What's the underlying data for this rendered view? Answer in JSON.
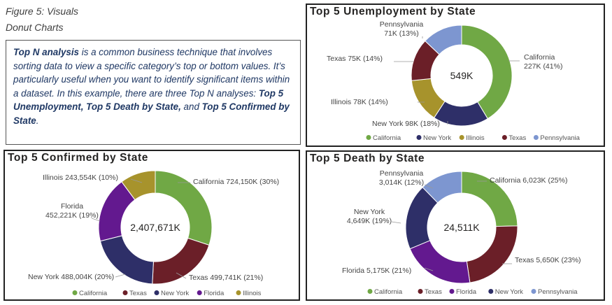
{
  "caption_line1": "Figure 5: Visuals",
  "caption_line2": "Donut Charts",
  "intro": {
    "t1": "Top N analysis",
    "t2": " is a common business technique that involves sorting data to view a specific category’s top or bottom values. It’s particularly useful when you want to identify significant items within a dataset.  In this example, there are three Top N analyses: ",
    "t3": "Top 5 Unemployment, Top 5 Death by State,",
    "t4": " and ",
    "t5": "Top 5 Confirmed by State",
    "t6": "."
  },
  "chart_data": [
    {
      "type": "pie",
      "title": "Top 5 Unemployment by State",
      "center_label": "549K",
      "slices": [
        {
          "name": "California",
          "value": 227,
          "label_lines": [
            "California",
            "227K (41%)"
          ],
          "color": "#70a845"
        },
        {
          "name": "New York",
          "value": 98,
          "label_lines": [
            "New York 98K (18%)"
          ],
          "color": "#2e2f68"
        },
        {
          "name": "Illinois",
          "value": 78,
          "label_lines": [
            "Illinois 78K (14%)"
          ],
          "color": "#a7932c"
        },
        {
          "name": "Texas",
          "value": 75,
          "label_lines": [
            "Texas 75K (14%)"
          ],
          "color": "#6b1f28"
        },
        {
          "name": "Pennsylvania",
          "value": 71,
          "label_lines": [
            "Pennsylvania",
            "71K (13%)"
          ],
          "color": "#7d96d0"
        }
      ],
      "legend": [
        "California",
        "New York",
        "Illinois",
        "Texas",
        "Pennsylvania"
      ]
    },
    {
      "type": "pie",
      "title": "Top 5 Confirmed by State",
      "center_label": "2,407,671K",
      "slices": [
        {
          "name": "California",
          "value": 724150,
          "label_lines": [
            "California 724,150K (30%)"
          ],
          "color": "#70a845"
        },
        {
          "name": "Texas",
          "value": 499741,
          "label_lines": [
            "Texas 499,741K (21%)"
          ],
          "color": "#6b1f28"
        },
        {
          "name": "New York",
          "value": 488004,
          "label_lines": [
            "New York 488,004K (20%)"
          ],
          "color": "#2e2f68"
        },
        {
          "name": "Florida",
          "value": 452221,
          "label_lines": [
            "Florida",
            "452,221K (19%)"
          ],
          "color": "#63198f"
        },
        {
          "name": "Illinois",
          "value": 243554,
          "label_lines": [
            "Illinois 243,554K (10%)"
          ],
          "color": "#a7932c"
        }
      ],
      "legend": [
        "California",
        "Texas",
        "New York",
        "Florida",
        "Illinois"
      ]
    },
    {
      "type": "pie",
      "title": "Top 5 Death by State",
      "center_label": "24,511K",
      "slices": [
        {
          "name": "California",
          "value": 6023,
          "label_lines": [
            "California 6,023K (25%)"
          ],
          "color": "#70a845"
        },
        {
          "name": "Texas",
          "value": 5650,
          "label_lines": [
            "Texas 5,650K (23%)"
          ],
          "color": "#6b1f28"
        },
        {
          "name": "Florida",
          "value": 5175,
          "label_lines": [
            "Florida 5,175K (21%)"
          ],
          "color": "#63198f"
        },
        {
          "name": "New York",
          "value": 4649,
          "label_lines": [
            "New York",
            "4,649K (19%)"
          ],
          "color": "#2e2f68"
        },
        {
          "name": "Pennsylvania",
          "value": 3014,
          "label_lines": [
            "Pennsylvania",
            "3,014K (12%)"
          ],
          "color": "#7d96d0"
        }
      ],
      "legend": [
        "California",
        "Texas",
        "Florida",
        "New York",
        "Pennsylvania"
      ]
    }
  ]
}
